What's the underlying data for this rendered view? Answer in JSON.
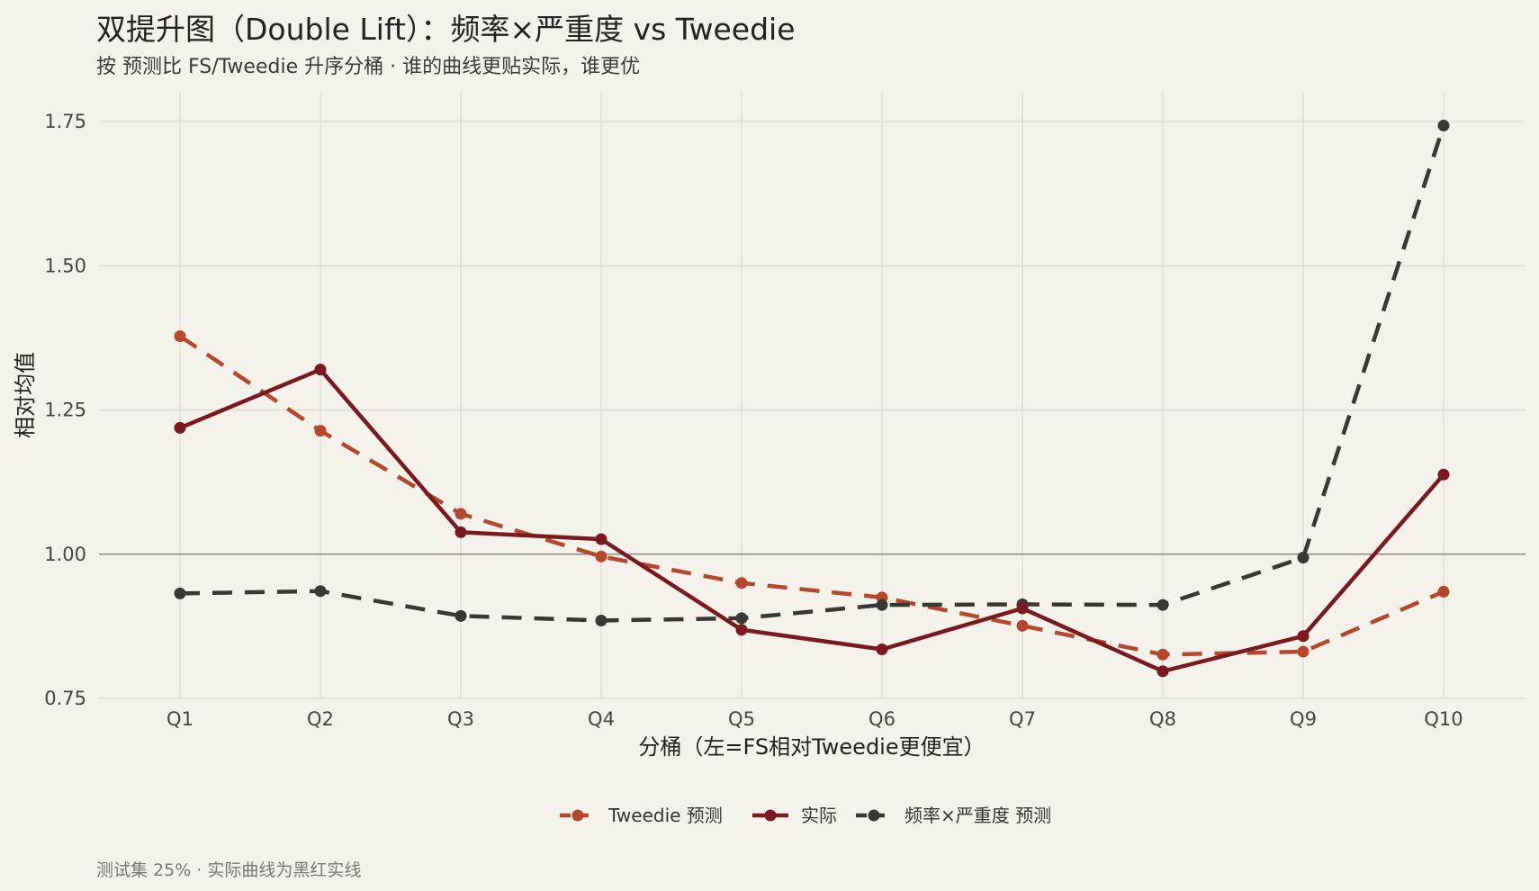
{
  "title": "双提升图（Double Lift）：频率×严重度 vs Tweedie",
  "subtitle": "按 预测比 FS/Tweedie 升序分桶 ·  谁的曲线更贴实际，谁更优",
  "caption": "测试集 25% ·  实际曲线为黑红实线",
  "colors": {
    "background": "#f5f2ec",
    "grid": "#dcd8d2",
    "reference_line": "#8a8680",
    "tweedie": "#b5472a",
    "actual": "#7a1a1e",
    "fs": "#3a3734"
  },
  "chart_data": {
    "type": "line",
    "categories": [
      "Q1",
      "Q2",
      "Q3",
      "Q4",
      "Q5",
      "Q6",
      "Q7",
      "Q8",
      "Q9",
      "Q10"
    ],
    "xlabel": "分桶（左=FS相对Tweedie更便宜）",
    "ylabel": "相对均值",
    "ylim": [
      0.75,
      1.8
    ],
    "yticks": [
      0.75,
      1.0,
      1.25,
      1.5,
      1.75
    ],
    "ytick_labels": [
      "0.75",
      "1.00",
      "1.25",
      "1.50",
      "1.75"
    ],
    "reference_y": 1.0,
    "grid": true,
    "legend_position": "bottom",
    "series": [
      {
        "name": "Tweedie 预测",
        "key": "tweedie",
        "style": "dashed",
        "values": [
          1.378,
          1.214,
          1.07,
          0.996,
          0.95,
          0.925,
          0.876,
          0.826,
          0.831,
          0.935
        ]
      },
      {
        "name": "实际",
        "key": "actual",
        "style": "solid",
        "values": [
          1.219,
          1.32,
          1.038,
          1.026,
          0.869,
          0.835,
          0.906,
          0.797,
          0.858,
          1.138
        ]
      },
      {
        "name": "频率×严重度 预测",
        "key": "fs",
        "style": "dashed",
        "values": [
          0.932,
          0.936,
          0.893,
          0.885,
          0.889,
          0.912,
          0.913,
          0.912,
          0.994,
          1.743
        ]
      }
    ]
  }
}
